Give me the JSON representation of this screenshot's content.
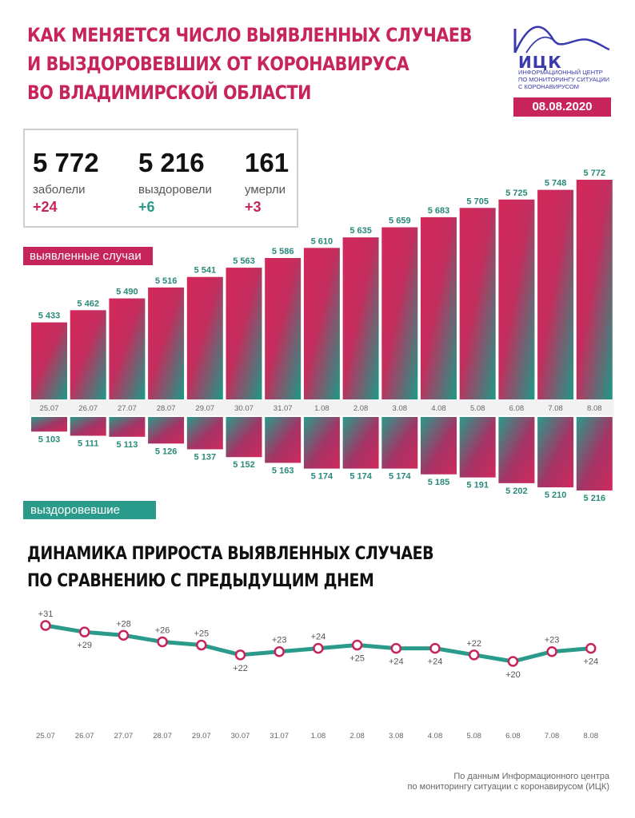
{
  "title": {
    "line1": "КАК МЕНЯЕТСЯ ЧИСЛО ВЫЯВЛЕННЫХ СЛУЧАЕВ",
    "line2": "И ВЫЗДОРОВЕВШИХ ОТ КОРОНАВИРУСА",
    "line3": "ВО ВЛАДИМИРСКОЙ ОБЛАСТИ"
  },
  "logo": {
    "name": "ИЦК",
    "line1": "Информационный центр",
    "line2": "по мониторингу ситуации",
    "line3": "с коронавирусом",
    "icon": "wave-logo-icon"
  },
  "date": "08.08.2020",
  "stats": {
    "cases": {
      "value": "5 772",
      "label": "заболели",
      "delta": "+24"
    },
    "recovered": {
      "value": "5 216",
      "label": "выздоровели",
      "delta": "+6"
    },
    "deaths": {
      "value": "161",
      "label": "умерли",
      "delta": "+3"
    }
  },
  "labels": {
    "cases": "выявленные случаи",
    "recovered": "выздоровевшие"
  },
  "subtitle": {
    "line1": "ДИНАМИКА ПРИРОСТА ВЫЯВЛЕННЫХ СЛУЧАЕВ",
    "line2": "ПО СРАВНЕНИЮ С ПРЕДЫДУЩИМ ДНЕМ"
  },
  "source": {
    "line1": "По данным Информационного центра",
    "line2": "по мониторингу ситуации с коронавирусом (ИЦК)"
  },
  "colors": {
    "accent": "#c6245a",
    "teal": "#2a9a8a",
    "line": "#2a9a8a",
    "marker": "#c6245a"
  },
  "chart_data": [
    {
      "type": "bar",
      "categories": [
        "25.07",
        "26.07",
        "27.07",
        "28.07",
        "29.07",
        "30.07",
        "31.07",
        "1.08",
        "2.08",
        "3.08",
        "4.08",
        "5.08",
        "6.08",
        "7.08",
        "8.08"
      ],
      "series": [
        {
          "name": "выявленные случаи",
          "values": [
            5433,
            5462,
            5490,
            5516,
            5541,
            5563,
            5586,
            5610,
            5635,
            5659,
            5683,
            5705,
            5725,
            5748,
            5772
          ],
          "labels": [
            "5 433",
            "5 462",
            "5 490",
            "5 516",
            "5 541",
            "5 563",
            "5 586",
            "5 610",
            "5 635",
            "5 659",
            "5 683",
            "5 705",
            "5 725",
            "5 748",
            "5 772"
          ]
        },
        {
          "name": "выздоровевшие",
          "values": [
            5103,
            5111,
            5113,
            5126,
            5137,
            5152,
            5163,
            5174,
            5174,
            5174,
            5185,
            5191,
            5202,
            5210,
            5216
          ],
          "labels": [
            "5 103",
            "5 111",
            "5 113",
            "5 126",
            "5 137",
            "5 152",
            "5 163",
            "5 174",
            "5 174",
            "5 174",
            "5 185",
            "5 191",
            "5 202",
            "5 210",
            "5 216"
          ]
        }
      ]
    },
    {
      "type": "line",
      "categories": [
        "25.07",
        "26.07",
        "27.07",
        "28.07",
        "29.07",
        "30.07",
        "31.07",
        "1.08",
        "2.08",
        "3.08",
        "4.08",
        "5.08",
        "6.08",
        "7.08",
        "8.08"
      ],
      "values": [
        31,
        29,
        28,
        26,
        25,
        22,
        23,
        24,
        25,
        24,
        24,
        22,
        20,
        23,
        24
      ],
      "labels": [
        "+31",
        "+29",
        "+28",
        "+26",
        "+25",
        "+22",
        "+23",
        "+24",
        "+25",
        "+24",
        "+24",
        "+22",
        "+20",
        "+23",
        "+24"
      ],
      "label_positions": [
        "above",
        "below",
        "above",
        "above",
        "above",
        "below",
        "above",
        "above",
        "below",
        "below",
        "below",
        "above",
        "below",
        "above",
        "below"
      ]
    }
  ]
}
